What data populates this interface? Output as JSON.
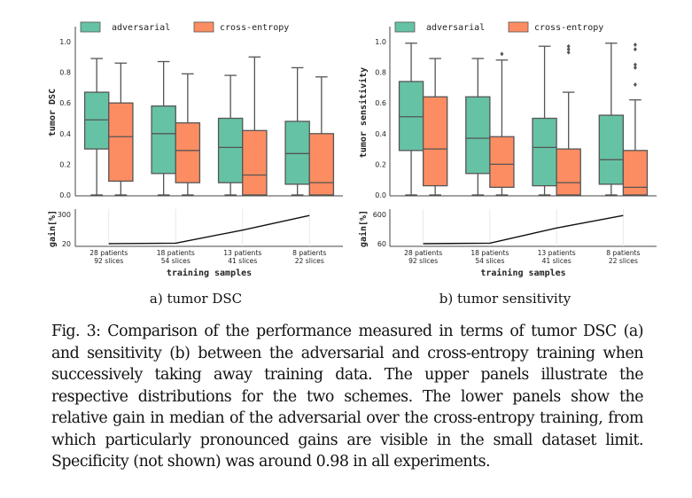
{
  "colors": {
    "adversarial": "#66c2a5",
    "cross_entropy": "#fc8d62",
    "box_edge": "#555555"
  },
  "legend": {
    "series_a": "adversarial",
    "series_b": "cross-entropy"
  },
  "shared": {
    "xlabel": "training samples",
    "gain_ylabel": "gain[%]",
    "categories": [
      [
        "28 patients",
        "92 slices"
      ],
      [
        "18 patients",
        "54 slices"
      ],
      [
        "13 patients",
        "41 slices"
      ],
      [
        "8 patients",
        "22 slices"
      ]
    ]
  },
  "chart_data": [
    {
      "type": "box",
      "panel": "a",
      "subcaption": "a) tumor DSC",
      "ylabel": "tumor DSC",
      "ylim": [
        0,
        1
      ],
      "yticks": [
        "0.0",
        "0.2",
        "0.4",
        "0.6",
        "0.8",
        "1.0"
      ],
      "series": [
        {
          "name": "adversarial",
          "boxes": [
            {
              "whislo": 0.0,
              "q1": 0.3,
              "med": 0.49,
              "q3": 0.67,
              "whishi": 0.89,
              "fliers": []
            },
            {
              "whislo": 0.0,
              "q1": 0.14,
              "med": 0.4,
              "q3": 0.58,
              "whishi": 0.87,
              "fliers": []
            },
            {
              "whislo": 0.0,
              "q1": 0.08,
              "med": 0.31,
              "q3": 0.5,
              "whishi": 0.78,
              "fliers": []
            },
            {
              "whislo": 0.0,
              "q1": 0.07,
              "med": 0.27,
              "q3": 0.48,
              "whishi": 0.83,
              "fliers": []
            }
          ]
        },
        {
          "name": "cross-entropy",
          "boxes": [
            {
              "whislo": 0.0,
              "q1": 0.09,
              "med": 0.38,
              "q3": 0.6,
              "whishi": 0.86,
              "fliers": []
            },
            {
              "whislo": 0.0,
              "q1": 0.08,
              "med": 0.29,
              "q3": 0.47,
              "whishi": 0.79,
              "fliers": []
            },
            {
              "whislo": 0.0,
              "q1": 0.0,
              "med": 0.13,
              "q3": 0.42,
              "whishi": 0.9,
              "fliers": []
            },
            {
              "whislo": 0.0,
              "q1": 0.0,
              "med": 0.08,
              "q3": 0.4,
              "whishi": 0.77,
              "fliers": []
            }
          ]
        }
      ],
      "gain": {
        "yticks": [
          "20",
          "300"
        ],
        "ylim": [
          20,
          300
        ],
        "values": [
          20,
          25,
          150,
          290
        ]
      }
    },
    {
      "type": "box",
      "panel": "b",
      "subcaption": "b) tumor sensitivity",
      "ylabel": "tumor sensitivity",
      "ylim": [
        0,
        1
      ],
      "yticks": [
        "0.0",
        "0.2",
        "0.4",
        "0.6",
        "0.8",
        "1.0"
      ],
      "series": [
        {
          "name": "adversarial",
          "boxes": [
            {
              "whislo": 0.0,
              "q1": 0.29,
              "med": 0.51,
              "q3": 0.74,
              "whishi": 0.99,
              "fliers": []
            },
            {
              "whislo": 0.0,
              "q1": 0.14,
              "med": 0.37,
              "q3": 0.64,
              "whishi": 0.89,
              "fliers": []
            },
            {
              "whislo": 0.0,
              "q1": 0.06,
              "med": 0.31,
              "q3": 0.5,
              "whishi": 0.97,
              "fliers": []
            },
            {
              "whislo": 0.0,
              "q1": 0.07,
              "med": 0.23,
              "q3": 0.52,
              "whishi": 0.99,
              "fliers": []
            }
          ]
        },
        {
          "name": "cross-entropy",
          "boxes": [
            {
              "whislo": 0.0,
              "q1": 0.06,
              "med": 0.3,
              "q3": 0.64,
              "whishi": 0.89,
              "fliers": []
            },
            {
              "whislo": 0.0,
              "q1": 0.05,
              "med": 0.2,
              "q3": 0.38,
              "whishi": 0.88,
              "fliers": [
                0.92
              ]
            },
            {
              "whislo": 0.0,
              "q1": 0.0,
              "med": 0.08,
              "q3": 0.3,
              "whishi": 0.67,
              "fliers": [
                0.93,
                0.95,
                0.97
              ]
            },
            {
              "whislo": 0.0,
              "q1": 0.0,
              "med": 0.05,
              "q3": 0.29,
              "whishi": 0.62,
              "fliers": [
                0.72,
                0.83,
                0.85,
                0.95,
                0.98
              ]
            }
          ]
        }
      ],
      "gain": {
        "yticks": [
          "60",
          "600"
        ],
        "ylim": [
          60,
          600
        ],
        "values": [
          60,
          70,
          350,
          580
        ]
      }
    }
  ],
  "caption": {
    "label": "Fig. 3:",
    "text": "Comparison of the performance measured in terms of tumor DSC (a) and sensitivity (b) between the adversarial and cross-entropy training when successively taking away training data. The upper panels illustrate the respective distributions for the two schemes. The lower panels show the relative gain in median of the adversarial over the cross-entropy training, from which particularly pronounced gains are visible in the small dataset limit. Specificity (not shown) was around 0.98 in all experiments."
  }
}
